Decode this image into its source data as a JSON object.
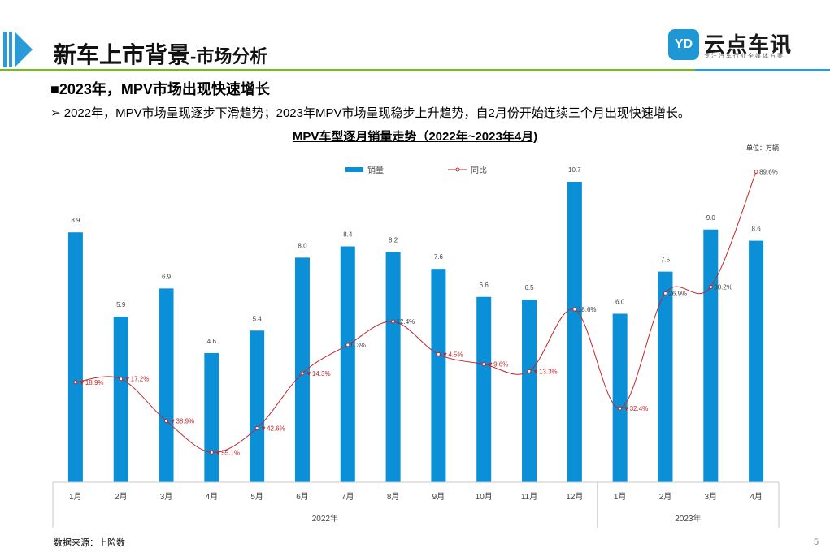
{
  "header": {
    "title_main": "新车上市背景",
    "title_sub": "-市场分析",
    "logo_mark": "YD",
    "logo_name": "云点车讯",
    "logo_tagline": "专注汽车行业全媒体方案"
  },
  "heading": "■2023年，MPV市场出现快速增长",
  "bullet": "➢ 2022年，MPV市场呈现逐步下滑趋势；2023年MPV市场呈现稳步上升趋势，自2月份开始连续三个月出现快速增长。",
  "unit_label": "单位：万辆",
  "source": "数据来源：上险数",
  "page_number": "5",
  "colors": {
    "bar": "#0b8fd6",
    "line": "#c0272d",
    "green_rule": "#7ab52a",
    "blue_accent": "#2a9bd8"
  },
  "chart_data": {
    "type": "bar",
    "title": "MPV车型逐月销量走势（2022年~2023年4月)",
    "categories": [
      "1月",
      "2月",
      "3月",
      "4月",
      "5月",
      "6月",
      "7月",
      "8月",
      "9月",
      "10月",
      "11月",
      "12月",
      "1月",
      "2月",
      "3月",
      "4月"
    ],
    "groups": [
      {
        "label": "2022年",
        "count": 12
      },
      {
        "label": "2023年",
        "count": 4
      }
    ],
    "series": [
      {
        "name": "销量",
        "type": "bar",
        "values": [
          8.9,
          5.9,
          6.9,
          4.6,
          5.4,
          8.0,
          8.4,
          8.2,
          7.6,
          6.6,
          6.5,
          10.7,
          6.0,
          7.5,
          9.0,
          8.6
        ],
        "labels": [
          "8.9",
          "5.9",
          "6.9",
          "4.6",
          "5.4",
          "8.0",
          "8.4",
          "8.2",
          "7.6",
          "6.6",
          "6.5",
          "10.7",
          "6.0",
          "7.5",
          "9.0",
          "8.6"
        ]
      },
      {
        "name": "同比",
        "type": "line",
        "values": [
          -18.9,
          -17.2,
          -38.9,
          -55.1,
          -42.6,
          -14.3,
          0.3,
          12.4,
          -4.5,
          -9.6,
          -13.3,
          18.6,
          -32.4,
          26.9,
          30.2,
          89.6
        ],
        "labels": [
          "▼18.9%",
          "▼17.2%",
          "▼38.9%",
          "▼55.1%",
          "▼42.6%",
          "▼14.3%",
          "0.3%",
          "12.4%",
          "▼4.5%",
          "▼9.6%",
          "▼13.3%",
          "18.6%",
          "▼32.4%",
          "26.9%",
          "30.2%",
          "89.6%"
        ]
      }
    ],
    "ylim_bar": [
      0,
      12
    ],
    "ylim_line": [
      -70,
      100
    ],
    "legend_position": "top-center",
    "grid": false
  }
}
